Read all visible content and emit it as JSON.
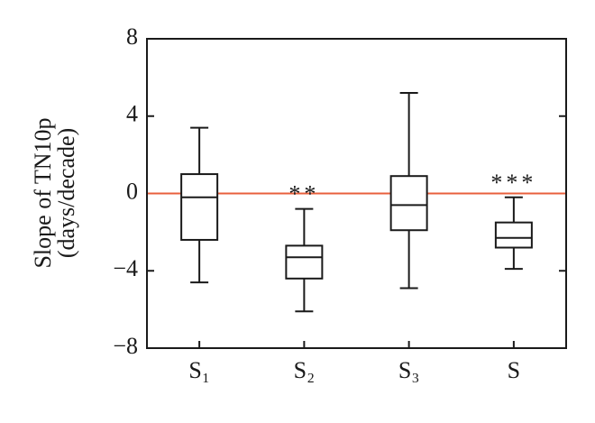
{
  "chart_data": {
    "type": "box",
    "y_label_lines": [
      "Slope of TN10p",
      "(days/decade)"
    ],
    "categories": [
      "S₁",
      "S₂",
      "S₃",
      "S"
    ],
    "whisker_high": [
      3.4,
      -0.8,
      5.2,
      -0.2
    ],
    "q3": [
      1.0,
      -2.7,
      0.9,
      -1.5
    ],
    "median": [
      -0.2,
      -3.3,
      -0.6,
      -2.3
    ],
    "q1": [
      -2.4,
      -4.4,
      -1.9,
      -2.8
    ],
    "whisker_low": [
      -4.6,
      -6.1,
      -4.9,
      -3.9
    ],
    "annotations": [
      null,
      "**",
      null,
      "***"
    ],
    "color": "#1a1a1a",
    "reference_line": {
      "value": 0,
      "color": "#e8603c"
    },
    "ylim": [
      -8,
      8
    ],
    "yticks": [
      {
        "value": -8,
        "label": "−8"
      },
      {
        "value": -4,
        "label": "−4"
      },
      0,
      4,
      8
    ]
  }
}
